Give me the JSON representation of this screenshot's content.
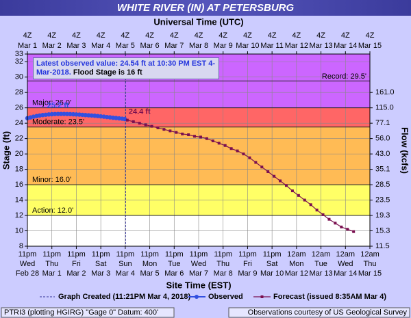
{
  "chart_data": {
    "type": "hydrograph",
    "title": "WHITE RIVER (IN) AT PETERSBURG",
    "top_axis_label": "Universal Time (UTC)",
    "x_label": "Site Time (EST)",
    "y_label": "Stage (ft)",
    "xlim": [
      "2018-03-01T04:00Z",
      "2018-03-15T04:00Z"
    ],
    "xticks": [
      "2018-03-01T04:00Z",
      "2018-03-02T04:00Z",
      "2018-03-03T04:00Z",
      "2018-03-04T04:00Z",
      "2018-03-05T04:00Z",
      "2018-03-06T04:00Z",
      "2018-03-07T04:00Z",
      "2018-03-08T04:00Z",
      "2018-03-09T04:00Z",
      "2018-03-10T04:00Z",
      "2018-03-11T04:00Z",
      "2018-03-12T04:00Z",
      "2018-03-13T04:00Z",
      "2018-03-14T04:00Z",
      "2018-03-15T04:00Z"
    ],
    "utc_labels": {
      "hour": [
        "4Z",
        "4Z",
        "4Z",
        "4Z",
        "4Z",
        "4Z",
        "4Z",
        "4Z",
        "4Z",
        "4Z",
        "4Z",
        "4Z",
        "4Z",
        "4Z",
        "4Z"
      ],
      "date": [
        "Mar 1",
        "Mar 2",
        "Mar 3",
        "Mar 4",
        "Mar 5",
        "Mar 6",
        "Mar 7",
        "Mar 8",
        "Mar 9",
        "Mar 10",
        "Mar 11",
        "Mar 12",
        "Mar 13",
        "Mar 14",
        "Mar 15"
      ]
    },
    "local_labels": {
      "time": [
        "11pm",
        "11pm",
        "11pm",
        "11pm",
        "11pm",
        "11pm",
        "11pm",
        "11pm",
        "11pm",
        "11pm",
        "11pm",
        "12am",
        "12am",
        "12am",
        "12am"
      ],
      "weekday": [
        "Wed",
        "Thu",
        "Fri",
        "Sat",
        "Sun",
        "Mon",
        "Tue",
        "Wed",
        "Thu",
        "Fri",
        "Sat",
        "Mon",
        "Tue",
        "Wed",
        "Thu"
      ],
      "date": [
        "Feb 28",
        "Mar 1",
        "Mar 2",
        "Mar 3",
        "Mar 4",
        "Mar 5",
        "Mar 6",
        "Mar 7",
        "Mar 8",
        "Mar 9",
        "Mar 10",
        "Mar 12",
        "Mar 13",
        "Mar 14",
        "Mar 15"
      ]
    },
    "ylim": [
      8,
      33
    ],
    "yticks": [
      8,
      10,
      12,
      14,
      16,
      18,
      20,
      22,
      24,
      26,
      28,
      30,
      32,
      33
    ],
    "grid": true,
    "flow_axis": {
      "label": "Flow (kcfs)",
      "stage": [
        8,
        10,
        12,
        14,
        16,
        18,
        20,
        22,
        24,
        26,
        28
      ],
      "ticks": [
        11.5,
        15.3,
        19.3,
        23.5,
        28.5,
        35.1,
        {
          "value": 43,
          "label": "43.0"
        },
        {
          "value": 56,
          "label": "56.0"
        },
        77.1,
        {
          "value": 115,
          "label": "115.0"
        },
        {
          "value": 161,
          "label": "161.0"
        }
      ]
    },
    "stages": [
      {
        "value": 12,
        "label": "Action: 12.0'",
        "color": "#ffff66"
      },
      {
        "value": 16,
        "label": "Minor: 16.0'",
        "color": "#ffbb55"
      },
      {
        "value": 23.5,
        "label": "Moderate: 23.5'",
        "color": "#ff6666"
      },
      {
        "value": 26,
        "label": "Major: 26.0'",
        "color": "#cc66ff"
      }
    ],
    "record": {
      "value": 29.5,
      "label": "Record: 29.5'"
    },
    "annotation": {
      "observed": "Latest observed value: 24.54 ft at 10:30 PM EST 4-Mar-2018.",
      "flood": "Flood Stage is 16 ft"
    },
    "graph_created": {
      "label": "Graph Created (11:21PM Mar 4, 2018)",
      "x": "2018-03-05T04:21Z",
      "color": "#333399"
    },
    "series": [
      {
        "name": "Observed",
        "color": "#3350e0",
        "peak_label": "25.2 ft",
        "x": [
          "2018-03-01T04:00Z",
          "2018-03-01T07:00Z",
          "2018-03-01T10:00Z",
          "2018-03-01T13:00Z",
          "2018-03-01T16:00Z",
          "2018-03-01T19:00Z",
          "2018-03-01T22:00Z",
          "2018-03-02T01:00Z",
          "2018-03-02T04:00Z",
          "2018-03-02T07:00Z",
          "2018-03-02T10:00Z",
          "2018-03-02T13:00Z",
          "2018-03-02T16:00Z",
          "2018-03-02T19:00Z",
          "2018-03-02T22:00Z",
          "2018-03-03T01:00Z",
          "2018-03-03T04:00Z",
          "2018-03-03T07:00Z",
          "2018-03-03T10:00Z",
          "2018-03-03T13:00Z",
          "2018-03-03T16:00Z",
          "2018-03-03T19:00Z",
          "2018-03-03T22:00Z",
          "2018-03-04T01:00Z",
          "2018-03-04T04:00Z",
          "2018-03-04T07:00Z",
          "2018-03-04T10:00Z",
          "2018-03-04T13:00Z",
          "2018-03-04T16:00Z",
          "2018-03-04T19:00Z",
          "2018-03-04T22:00Z",
          "2018-03-05T01:00Z",
          "2018-03-05T03:30Z"
        ],
        "values": [
          24.65,
          24.75,
          24.85,
          24.93,
          25.0,
          25.06,
          25.1,
          25.14,
          25.17,
          25.19,
          25.2,
          25.2,
          25.2,
          25.19,
          25.18,
          25.16,
          25.14,
          25.12,
          25.09,
          25.06,
          25.03,
          25.0,
          24.97,
          24.93,
          24.89,
          24.85,
          24.8,
          24.76,
          24.71,
          24.67,
          24.63,
          24.59,
          24.54
        ]
      },
      {
        "name": "Forecast (issued 8:35AM Mar 4)",
        "color": "#7a1050",
        "start_label": "24.4 ft",
        "x": [
          "2018-03-05T06:00Z",
          "2018-03-05T12:00Z",
          "2018-03-05T18:00Z",
          "2018-03-06T00:00Z",
          "2018-03-06T06:00Z",
          "2018-03-06T12:00Z",
          "2018-03-06T18:00Z",
          "2018-03-07T00:00Z",
          "2018-03-07T06:00Z",
          "2018-03-07T12:00Z",
          "2018-03-07T18:00Z",
          "2018-03-08T00:00Z",
          "2018-03-08T06:00Z",
          "2018-03-08T12:00Z",
          "2018-03-08T18:00Z",
          "2018-03-09T00:00Z",
          "2018-03-09T06:00Z",
          "2018-03-09T12:00Z",
          "2018-03-09T18:00Z",
          "2018-03-10T00:00Z",
          "2018-03-10T06:00Z",
          "2018-03-10T12:00Z",
          "2018-03-10T18:00Z",
          "2018-03-11T00:00Z",
          "2018-03-11T06:00Z",
          "2018-03-11T12:00Z",
          "2018-03-11T18:00Z",
          "2018-03-12T00:00Z",
          "2018-03-12T06:00Z",
          "2018-03-12T12:00Z",
          "2018-03-12T18:00Z",
          "2018-03-13T00:00Z",
          "2018-03-13T06:00Z",
          "2018-03-13T12:00Z",
          "2018-03-13T18:00Z",
          "2018-03-14T00:00Z",
          "2018-03-14T06:00Z",
          "2018-03-14T12:00Z"
        ],
        "values": [
          24.4,
          24.2,
          24.0,
          23.8,
          23.6,
          23.4,
          23.2,
          23.0,
          22.8,
          22.6,
          22.5,
          22.3,
          22.2,
          22.0,
          21.7,
          21.4,
          21.1,
          20.7,
          20.4,
          20.0,
          19.5,
          18.9,
          18.3,
          17.7,
          17.1,
          16.5,
          15.9,
          15.2,
          14.6,
          14.0,
          13.4,
          12.7,
          12.1,
          11.5,
          11.0,
          10.5,
          10.2,
          9.9
        ]
      }
    ],
    "footer": {
      "left": "PTRI3 (plotting HGIRG) \"Gage 0\" Datum: 400'",
      "right": "Observations courtesy of US Geological Survey"
    }
  }
}
